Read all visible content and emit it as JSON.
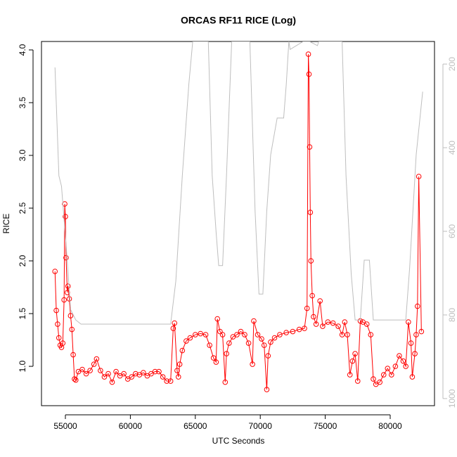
{
  "chart_data": {
    "type": "line",
    "title": "ORCAS RF11 RICE (Log)",
    "x_label": "UTC Seconds",
    "y_label": "RICE",
    "xlim": [
      53160,
      83410
    ],
    "xticks": [
      55000,
      60000,
      65000,
      70000,
      75000,
      80000
    ],
    "ylim": [
      0.627,
      4.08
    ],
    "yticks": [
      {
        "value": 1,
        "label": "1.0"
      },
      {
        "value": 1.5,
        "label": "1.5"
      },
      {
        "value": 2,
        "label": "2.0"
      },
      {
        "value": 2.5,
        "label": "2.5"
      },
      {
        "value": 3,
        "label": "3.0"
      },
      {
        "value": 3.5,
        "label": "3.5"
      },
      {
        "value": 4,
        "label": "4.0"
      }
    ],
    "y2lim": [
      1017,
      146
    ],
    "y2ticks": [
      200,
      400,
      600,
      800,
      1000
    ],
    "series": [
      {
        "color": "#ff0000",
        "markers": true,
        "x": [
          54200,
          54300,
          54400,
          54500,
          54600,
          54700,
          54800,
          54900,
          54950,
          55000,
          55050,
          55150,
          55200,
          55300,
          55400,
          55500,
          55600,
          55700,
          55800,
          56000,
          56300,
          56600,
          56900,
          57200,
          57400,
          57700,
          58000,
          58300,
          58600,
          58900,
          59200,
          59500,
          59800,
          60100,
          60400,
          60700,
          61000,
          61300,
          61600,
          61900,
          62200,
          62500,
          62800,
          63100,
          63300,
          63400,
          63600,
          63700,
          63800,
          64000,
          64300,
          64600,
          65000,
          65400,
          65800,
          66100,
          66400,
          66600,
          66700,
          66900,
          67100,
          67300,
          67400,
          67600,
          67900,
          68200,
          68500,
          68800,
          69100,
          69400,
          69500,
          69800,
          70100,
          70300,
          70500,
          70600,
          70800,
          71100,
          71500,
          72000,
          72500,
          73000,
          73400,
          73600,
          73700,
          73750,
          73800,
          73850,
          73900,
          74000,
          74100,
          74300,
          74600,
          74800,
          75200,
          75600,
          76000,
          76300,
          76500,
          76700,
          76900,
          77100,
          77300,
          77500,
          77700,
          77900,
          78200,
          78500,
          78700,
          78900,
          79200,
          79500,
          79800,
          80100,
          80400,
          80700,
          81000,
          81200,
          81400,
          81600,
          81700,
          81900,
          82000,
          82100,
          82200,
          82400
        ],
        "values": [
          1.9,
          1.53,
          1.4,
          1.27,
          1.2,
          1.18,
          1.22,
          1.63,
          2.54,
          2.42,
          2.03,
          1.7,
          1.76,
          1.64,
          1.48,
          1.35,
          1.11,
          0.88,
          0.87,
          0.95,
          0.97,
          0.93,
          0.96,
          1.02,
          1.07,
          0.96,
          0.9,
          0.93,
          0.85,
          0.95,
          0.91,
          0.93,
          0.88,
          0.9,
          0.93,
          0.92,
          0.94,
          0.91,
          0.93,
          0.95,
          0.95,
          0.9,
          0.86,
          0.86,
          1.36,
          1.41,
          0.96,
          0.9,
          1.02,
          1.15,
          1.24,
          1.27,
          1.3,
          1.31,
          1.3,
          1.2,
          1.08,
          1.04,
          1.45,
          1.33,
          1.3,
          0.85,
          1.12,
          1.22,
          1.28,
          1.3,
          1.33,
          1.3,
          1.22,
          1.02,
          1.43,
          1.3,
          1.26,
          1.2,
          0.78,
          1.1,
          1.23,
          1.27,
          1.3,
          1.32,
          1.33,
          1.35,
          1.36,
          1.55,
          3.96,
          3.77,
          3.08,
          2.46,
          2.0,
          1.67,
          1.47,
          1.4,
          1.62,
          1.38,
          1.42,
          1.41,
          1.38,
          1.3,
          1.42,
          1.3,
          0.92,
          1.05,
          1.12,
          0.86,
          1.43,
          1.42,
          1.4,
          1.3,
          0.88,
          0.83,
          0.85,
          0.92,
          0.98,
          0.92,
          1.0,
          1.1,
          1.05,
          1.0,
          1.42,
          1.22,
          0.9,
          1.12,
          1.3,
          1.57,
          2.8,
          1.33
        ]
      },
      {
        "color": "#bebebe",
        "axis": "y2",
        "markers": false,
        "x": [
          54200,
          54500,
          54700,
          55100,
          55400,
          55800,
          56200,
          63100,
          63500,
          64000,
          64500,
          64800,
          66000,
          66300,
          66600,
          66800,
          67100,
          67400,
          67800,
          69200,
          69600,
          69900,
          70200,
          70500,
          70800,
          71300,
          71800,
          72000,
          72200,
          72300,
          73300,
          73800,
          74400,
          74500,
          75000,
          76300,
          76600,
          77000,
          77300,
          77700,
          78000,
          78400,
          78700,
          81200,
          81500,
          82000,
          82500
        ],
        "values": [
          208,
          467,
          492,
          652,
          787,
          812,
          822,
          822,
          719,
          467,
          249,
          146,
          146,
          467,
          602,
          682,
          682,
          467,
          146,
          146,
          551,
          750,
          750,
          551,
          417,
          329,
          329,
          249,
          146,
          165,
          146,
          146,
          156,
          146,
          146,
          146,
          467,
          702,
          812,
          812,
          669,
          669,
          812,
          812,
          686,
          417,
          266
        ]
      }
    ]
  }
}
